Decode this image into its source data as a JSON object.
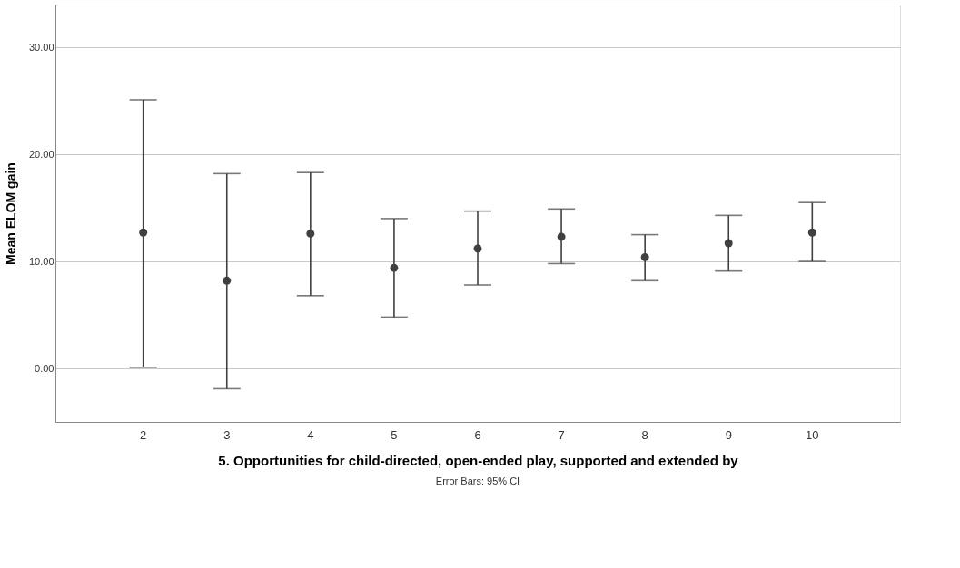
{
  "chart_data": {
    "type": "scatter",
    "xlabel": "5. Opportunities for child-directed, open-ended play, supported and extended by",
    "ylabel": "Mean ELOM gain",
    "categories": [
      "2",
      "3",
      "4",
      "5",
      "6",
      "7",
      "8",
      "9",
      "10"
    ],
    "values": [
      12.7,
      8.2,
      12.6,
      9.4,
      11.2,
      12.3,
      10.4,
      11.7,
      12.7
    ],
    "errors": [
      [
        0.1,
        25.1
      ],
      [
        -1.9,
        18.2
      ],
      [
        6.8,
        18.3
      ],
      [
        4.8,
        14.0
      ],
      [
        7.8,
        14.7
      ],
      [
        9.8,
        14.9
      ],
      [
        8.2,
        12.5
      ],
      [
        9.1,
        14.3
      ],
      [
        10.0,
        15.5
      ]
    ],
    "color": "#404040",
    "marker": "circle",
    "ylim": [
      -5,
      34
    ],
    "yticks": [
      {
        "value": 0,
        "label": "0.00"
      },
      {
        "value": 10,
        "label": "10.00"
      },
      {
        "value": 20,
        "label": "20.00"
      },
      {
        "value": 30,
        "label": "30.00"
      }
    ],
    "grid": "y",
    "annotations": [
      "Error Bars: 95% CI"
    ]
  }
}
